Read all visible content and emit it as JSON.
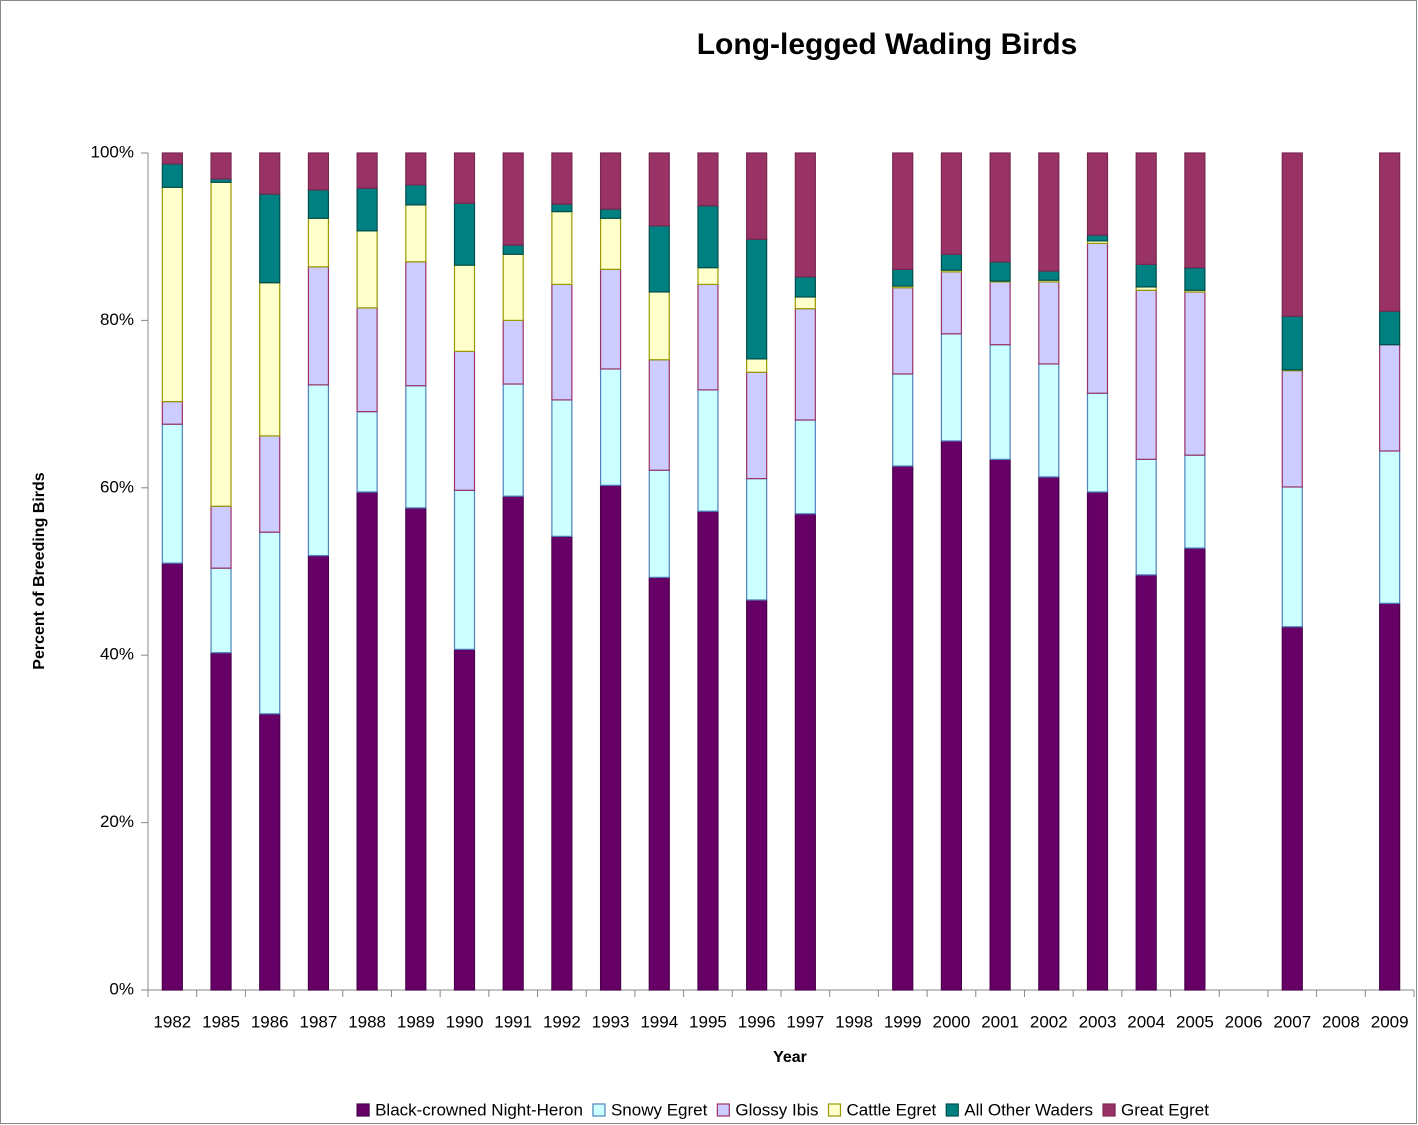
{
  "chart_data": {
    "type": "stacked_bar",
    "title": "Long-legged Wading Birds",
    "xlabel": "Year",
    "ylabel": "Percent of Breeding Birds",
    "categories": [
      "1982",
      "1985",
      "1986",
      "1987",
      "1988",
      "1989",
      "1990",
      "1991",
      "1992",
      "1993",
      "1994",
      "1995",
      "1996",
      "1997",
      "1998",
      "1999",
      "2000",
      "2001",
      "2002",
      "2003",
      "2004",
      "2005",
      "2006",
      "2007",
      "2008",
      "2009"
    ],
    "series": [
      {
        "name": "Black-crowned Night-Heron",
        "color": "#660066",
        "border": "#4a004a",
        "values": [
          51.0,
          40.3,
          33.0,
          51.9,
          59.5,
          57.6,
          40.7,
          59.0,
          54.2,
          60.3,
          49.3,
          57.2,
          46.6,
          56.9,
          null,
          62.6,
          65.6,
          63.4,
          61.3,
          59.5,
          49.6,
          52.8,
          null,
          43.4,
          null,
          46.2
        ]
      },
      {
        "name": "Snowy Egret",
        "color": "#ccffff",
        "border": "#4f81bd",
        "values": [
          16.6,
          10.1,
          21.7,
          20.4,
          9.6,
          14.6,
          19.0,
          13.4,
          16.3,
          13.9,
          12.8,
          14.5,
          14.5,
          11.2,
          null,
          11.0,
          12.8,
          13.7,
          13.5,
          11.8,
          13.8,
          11.1,
          null,
          16.7,
          null,
          18.2
        ]
      },
      {
        "name": "Glossy Ibis",
        "color": "#ccccff",
        "border": "#993366",
        "values": [
          2.7,
          7.4,
          11.5,
          14.1,
          12.4,
          14.8,
          16.6,
          7.6,
          13.8,
          11.9,
          13.2,
          12.6,
          12.7,
          13.3,
          null,
          10.3,
          7.4,
          7.5,
          9.8,
          17.9,
          20.2,
          19.5,
          null,
          13.9,
          null,
          12.7
        ]
      },
      {
        "name": "Cattle Egret",
        "color": "#ffffcc",
        "border": "#999900",
        "values": [
          25.6,
          38.7,
          18.3,
          5.8,
          9.2,
          6.8,
          10.3,
          7.9,
          8.7,
          6.1,
          8.1,
          2.0,
          1.6,
          1.4,
          null,
          0.2,
          0.2,
          0.1,
          0.2,
          0.3,
          0.4,
          0.2,
          null,
          0.1,
          null,
          0
        ]
      },
      {
        "name": "All Other Waders",
        "color": "#008080",
        "border": "#004d4d",
        "values": [
          2.8,
          0.4,
          10.6,
          3.4,
          5.1,
          2.4,
          7.4,
          1.1,
          0.9,
          1.1,
          7.9,
          7.4,
          14.3,
          2.4,
          null,
          2.0,
          1.9,
          2.3,
          1.1,
          0.7,
          2.7,
          2.7,
          null,
          6.4,
          null,
          4.0
        ]
      },
      {
        "name": "Great Egret",
        "color": "#993366",
        "border": "#7a2850",
        "values": [
          1.3,
          3.1,
          4.9,
          4.4,
          4.2,
          3.8,
          6.0,
          11.0,
          6.1,
          6.7,
          8.7,
          6.3,
          10.3,
          14.8,
          null,
          13.9,
          12.1,
          13.0,
          14.1,
          9.8,
          13.3,
          13.7,
          null,
          19.5,
          null,
          18.9
        ]
      }
    ],
    "ylim": [
      0,
      100
    ],
    "yticks": [
      {
        "value": 0,
        "label": "0%"
      },
      {
        "value": 20,
        "label": "20%"
      },
      {
        "value": 40,
        "label": "40%"
      },
      {
        "value": 60,
        "label": "60%"
      },
      {
        "value": 80,
        "label": "80%"
      },
      {
        "value": 100,
        "label": "100%"
      }
    ],
    "legend": "bottom"
  }
}
